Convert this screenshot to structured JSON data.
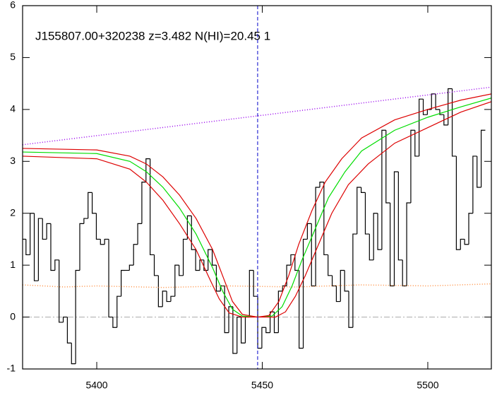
{
  "chart_data": {
    "type": "line",
    "title": "J155807.00+320238 z=3.482 N(HI)=20.45 1",
    "xlim": [
      5377.6,
      5519.2
    ],
    "ylim": [
      -1,
      6
    ],
    "xticks": [
      5400,
      5450,
      5500
    ],
    "yticks": [
      -1,
      0,
      1,
      2,
      3,
      4,
      5,
      6
    ],
    "vline": {
      "value": 5448.6,
      "color": "#0000cc"
    },
    "hline": {
      "value": 0,
      "color": "#aaaaaa"
    },
    "series": [
      {
        "style": "step",
        "color": "#000000",
        "x": [
          5378,
          5379.25,
          5380.5,
          5381.75,
          5383,
          5384.25,
          5385.5,
          5386.75,
          5388,
          5389.25,
          5390.5,
          5391.75,
          5393,
          5394.25,
          5395.5,
          5396.75,
          5398,
          5399.25,
          5400.5,
          5401.75,
          5403,
          5404.25,
          5405.5,
          5406.75,
          5408,
          5409.25,
          5410.5,
          5411.75,
          5413,
          5414.25,
          5415.5,
          5416.75,
          5418,
          5419.25,
          5420.5,
          5421.75,
          5423,
          5424.25,
          5425.5,
          5426.75,
          5428,
          5429.25,
          5430.5,
          5431.75,
          5433,
          5434.25,
          5435.5,
          5436.75,
          5438,
          5439.25,
          5440.5,
          5441.75,
          5443,
          5444.25,
          5445.5,
          5446.75,
          5448,
          5449.25,
          5450.5,
          5451.75,
          5453,
          5454.25,
          5455.5,
          5456.75,
          5458,
          5459.25,
          5460.5,
          5461.75,
          5463,
          5464.25,
          5465.5,
          5466.75,
          5468,
          5469.25,
          5470.5,
          5471.75,
          5473,
          5474.25,
          5475.5,
          5476.75,
          5478,
          5479.25,
          5480.5,
          5481.75,
          5483,
          5484.25,
          5485.5,
          5486.75,
          5488,
          5489.25,
          5490.5,
          5491.75,
          5493,
          5494.25,
          5495.5,
          5496.75,
          5498,
          5499.25,
          5500.5,
          5501.75,
          5503,
          5504.25,
          5505.5,
          5506.75,
          5508,
          5509.25,
          5510.5,
          5511.75,
          5513,
          5514.25,
          5515.5,
          5516.75
        ],
        "values": [
          1.5,
          1.2,
          2.0,
          0.7,
          1.9,
          1.5,
          1.8,
          0.9,
          1.1,
          -0.1,
          0.0,
          -0.5,
          -0.9,
          0.9,
          1.8,
          1.9,
          2.4,
          2.0,
          1.5,
          1.4,
          1.5,
          0.0,
          -0.2,
          0.4,
          0.9,
          0.9,
          1.0,
          1.4,
          1.8,
          2.6,
          3.05,
          1.2,
          0.8,
          0.2,
          0.5,
          0.3,
          0.4,
          1.0,
          0.8,
          1.5,
          1.95,
          1.3,
          0.9,
          1.1,
          0.9,
          1.3,
          1.0,
          0.5,
          0.6,
          -0.3,
          0.2,
          -0.7,
          0.0,
          -0.5,
          0.0,
          0.9,
          0.4,
          -0.6,
          -0.2,
          -0.3,
          0.1,
          -0.3,
          0.5,
          0.6,
          1.0,
          1.2,
          0.9,
          -0.6,
          1.5,
          1.8,
          0.6,
          2.5,
          2.6,
          1.2,
          0.8,
          0.6,
          0.3,
          0.9,
          0.5,
          -0.2,
          1.6,
          2.5,
          2.4,
          1.6,
          1.1,
          2.0,
          1.3,
          3.6,
          2.2,
          0.6,
          2.8,
          1.1,
          0.6,
          2.2,
          3.6,
          3.1,
          4.2,
          3.9,
          4.0,
          4.3,
          4.0,
          3.9,
          3.7,
          4.4,
          3.1,
          1.3,
          1.5,
          1.4,
          2.0,
          3.1,
          2.5,
          3.6
        ]
      },
      {
        "style": "dotted",
        "color": "#9900ee",
        "x": [
          5377.6,
          5519.2
        ],
        "values": [
          3.32,
          4.43
        ]
      },
      {
        "style": "dotted",
        "color": "#ff8c3c",
        "x": [
          5377.6,
          5390,
          5400,
          5420,
          5440,
          5460,
          5480,
          5500,
          5519.2
        ],
        "values": [
          0.62,
          0.58,
          0.6,
          0.57,
          0.6,
          0.58,
          0.62,
          0.6,
          0.64
        ]
      },
      {
        "style": "solid",
        "color": "#00dd00",
        "x": [
          5377.6,
          5400,
          5410,
          5415,
          5420,
          5425,
          5430,
          5435,
          5438,
          5441,
          5444,
          5448.6,
          5453,
          5456,
          5459,
          5462,
          5466,
          5470,
          5475,
          5480,
          5490,
          5500,
          5510,
          5519.2
        ],
        "values": [
          3.18,
          3.15,
          3.0,
          2.8,
          2.5,
          2.1,
          1.6,
          0.95,
          0.5,
          0.15,
          0.02,
          0,
          0.02,
          0.2,
          0.6,
          1.1,
          1.7,
          2.3,
          2.8,
          3.2,
          3.6,
          3.85,
          4.05,
          4.22
        ]
      },
      {
        "style": "solid",
        "color": "#dd0000",
        "x": [
          5377.6,
          5400,
          5410,
          5415,
          5420,
          5425,
          5430,
          5435,
          5438,
          5441,
          5444,
          5448.6,
          5452,
          5455,
          5458,
          5461,
          5465,
          5469,
          5474,
          5480,
          5490,
          5500,
          5510,
          5519.2
        ],
        "values": [
          3.25,
          3.22,
          3.1,
          2.95,
          2.7,
          2.35,
          1.9,
          1.3,
          0.8,
          0.3,
          0.05,
          0,
          0.03,
          0.3,
          0.8,
          1.4,
          2.05,
          2.6,
          3.05,
          3.45,
          3.8,
          4.0,
          4.18,
          4.3
        ]
      },
      {
        "style": "solid",
        "color": "#dd0000",
        "x": [
          5377.6,
          5400,
          5410,
          5415,
          5420,
          5425,
          5430,
          5434,
          5437,
          5440,
          5444,
          5448.6,
          5454,
          5457,
          5460,
          5463,
          5467,
          5471,
          5476,
          5482,
          5490,
          5500,
          5510,
          5519.2
        ],
        "values": [
          3.1,
          3.05,
          2.85,
          2.6,
          2.25,
          1.8,
          1.3,
          0.75,
          0.35,
          0.08,
          0,
          0,
          0,
          0.1,
          0.4,
          0.8,
          1.4,
          2.0,
          2.55,
          2.95,
          3.35,
          3.65,
          3.95,
          4.15
        ]
      }
    ]
  }
}
